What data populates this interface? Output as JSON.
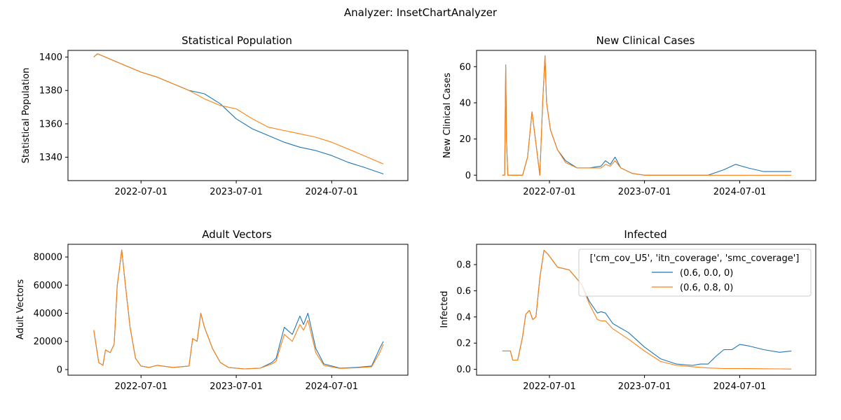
{
  "figure": {
    "suptitle": "Analyzer: InsetChartAnalyzer"
  },
  "series_colors": [
    "#1f77b4",
    "#ff7f0e"
  ],
  "legend": {
    "title": "['cm_cov_U5', 'itn_coverage', 'smc_coverage']",
    "entries": [
      "(0.6, 0.0, 0)",
      "(0.6, 0.8, 0)"
    ],
    "placement": "upper-right of Infected panel"
  },
  "chart_data": [
    {
      "type": "line",
      "title": "Statistical Population",
      "ylabel": "Statistical Population",
      "xlabel": "",
      "x_ticks": [
        "2022-07-01",
        "2023-07-01",
        "2024-07-01"
      ],
      "y_ticks": [
        1340,
        1360,
        1380,
        1400
      ],
      "ylim": [
        1326,
        1404
      ],
      "xlim": [
        "2021-09-24",
        "2025-04-19"
      ],
      "series": [
        {
          "x": [
            "2022-01-01",
            "2022-01-15",
            "2022-03-01",
            "2022-05-01",
            "2022-07-01",
            "2022-09-01",
            "2022-11-01",
            "2023-01-01",
            "2023-03-01",
            "2023-05-01",
            "2023-07-01",
            "2023-09-01",
            "2023-11-01",
            "2024-01-01",
            "2024-03-01",
            "2024-05-01",
            "2024-07-01",
            "2024-09-01",
            "2024-11-01",
            "2025-01-15"
          ],
          "values": [
            1400,
            1402,
            1399,
            1395,
            1391,
            1388,
            1384,
            1380,
            1378,
            1372,
            1363,
            1357,
            1353,
            1349,
            1346,
            1344,
            1341,
            1337,
            1334,
            1330
          ]
        },
        {
          "x": [
            "2022-01-01",
            "2022-01-15",
            "2022-03-01",
            "2022-05-01",
            "2022-07-01",
            "2022-09-01",
            "2022-11-01",
            "2023-01-01",
            "2023-03-01",
            "2023-05-01",
            "2023-07-01",
            "2023-09-01",
            "2023-11-01",
            "2024-01-01",
            "2024-03-01",
            "2024-05-01",
            "2024-07-01",
            "2024-09-01",
            "2024-11-01",
            "2025-01-15"
          ],
          "values": [
            1400,
            1402,
            1399,
            1395,
            1391,
            1388,
            1384,
            1380,
            1375,
            1371,
            1369,
            1363,
            1358,
            1356,
            1354,
            1352,
            1349,
            1345,
            1341,
            1336
          ]
        }
      ]
    },
    {
      "type": "line",
      "title": "New Clinical Cases",
      "ylabel": "New Clinical Cases",
      "xlabel": "",
      "x_ticks": [
        "2022-07-01",
        "2023-07-01",
        "2024-07-01"
      ],
      "y_ticks": [
        0,
        20,
        40,
        60
      ],
      "ylim": [
        -3,
        69
      ],
      "xlim": [
        "2021-09-24",
        "2025-04-19"
      ],
      "series": [
        {
          "x": [
            "2022-01-01",
            "2022-01-10",
            "2022-01-14",
            "2022-01-17",
            "2022-01-22",
            "2022-03-20",
            "2022-04-08",
            "2022-04-25",
            "2022-05-15",
            "2022-05-25",
            "2022-06-05",
            "2022-06-14",
            "2022-06-20",
            "2022-07-05",
            "2022-08-01",
            "2022-09-01",
            "2022-10-15",
            "2022-12-01",
            "2023-01-15",
            "2023-02-01",
            "2023-02-20",
            "2023-03-10",
            "2023-04-01",
            "2023-05-15",
            "2023-07-01",
            "2023-09-01",
            "2023-12-01",
            "2024-03-01",
            "2024-05-01",
            "2024-06-15",
            "2024-08-01",
            "2024-10-01",
            "2025-01-15"
          ],
          "values": [
            0,
            0,
            61,
            20,
            0,
            0,
            10,
            35,
            12,
            0,
            40,
            66,
            40,
            25,
            14,
            8,
            4,
            4,
            5,
            8,
            6,
            10,
            4,
            1,
            0,
            0,
            0,
            0,
            3,
            6,
            4,
            2,
            2
          ]
        },
        {
          "x": [
            "2022-01-01",
            "2022-01-10",
            "2022-01-14",
            "2022-01-17",
            "2022-01-22",
            "2022-03-20",
            "2022-04-08",
            "2022-04-25",
            "2022-05-15",
            "2022-05-25",
            "2022-06-05",
            "2022-06-14",
            "2022-06-20",
            "2022-07-05",
            "2022-08-01",
            "2022-09-01",
            "2022-10-15",
            "2022-12-01",
            "2023-01-15",
            "2023-02-01",
            "2023-02-20",
            "2023-03-10",
            "2023-04-01",
            "2023-05-15",
            "2023-07-01",
            "2023-09-01",
            "2023-12-01",
            "2024-03-01",
            "2024-05-01",
            "2024-06-15",
            "2024-08-01",
            "2024-10-01",
            "2025-01-15"
          ],
          "values": [
            0,
            0,
            61,
            20,
            0,
            0,
            10,
            35,
            12,
            0,
            40,
            66,
            40,
            25,
            14,
            7,
            4,
            4,
            4,
            6,
            5,
            8,
            4,
            1,
            0,
            0,
            0,
            0,
            0,
            0,
            0,
            0,
            0
          ]
        }
      ]
    },
    {
      "type": "line",
      "title": "Adult Vectors",
      "ylabel": "Adult Vectors",
      "xlabel": "",
      "x_ticks": [
        "2022-07-01",
        "2023-07-01",
        "2024-07-01"
      ],
      "y_ticks": [
        0,
        20000,
        40000,
        60000,
        80000
      ],
      "ylim": [
        -4000,
        89000
      ],
      "xlim": [
        "2021-09-24",
        "2025-04-19"
      ],
      "series": [
        {
          "x": [
            "2022-01-01",
            "2022-01-20",
            "2022-02-05",
            "2022-02-15",
            "2022-03-05",
            "2022-03-20",
            "2022-04-01",
            "2022-04-08",
            "2022-04-18",
            "2022-05-01",
            "2022-05-20",
            "2022-06-10",
            "2022-07-01",
            "2022-08-01",
            "2022-09-01",
            "2022-11-01",
            "2023-01-01",
            "2023-01-15",
            "2023-02-01",
            "2023-02-15",
            "2023-03-01",
            "2023-04-01",
            "2023-05-01",
            "2023-06-01",
            "2023-08-01",
            "2023-10-01",
            "2023-11-15",
            "2023-12-01",
            "2024-01-01",
            "2024-02-01",
            "2024-03-01",
            "2024-03-15",
            "2024-04-01",
            "2024-05-01",
            "2024-06-01",
            "2024-08-01",
            "2024-10-01",
            "2024-12-01",
            "2025-01-01",
            "2025-01-15"
          ],
          "values": [
            28000,
            5000,
            3000,
            14000,
            12000,
            18000,
            60000,
            70000,
            85000,
            62000,
            30000,
            8000,
            2500,
            1500,
            3000,
            1500,
            2500,
            22000,
            20000,
            40000,
            30000,
            15000,
            5000,
            1500,
            500,
            1000,
            5000,
            8000,
            30000,
            25000,
            38000,
            32000,
            40000,
            15000,
            4000,
            1000,
            1500,
            2500,
            15000,
            20000
          ]
        },
        {
          "x": [
            "2022-01-01",
            "2022-01-20",
            "2022-02-05",
            "2022-02-15",
            "2022-03-05",
            "2022-03-20",
            "2022-04-01",
            "2022-04-08",
            "2022-04-18",
            "2022-05-01",
            "2022-05-20",
            "2022-06-10",
            "2022-07-01",
            "2022-08-01",
            "2022-09-01",
            "2022-11-01",
            "2023-01-01",
            "2023-01-15",
            "2023-02-01",
            "2023-02-15",
            "2023-03-01",
            "2023-04-01",
            "2023-05-01",
            "2023-06-01",
            "2023-08-01",
            "2023-10-01",
            "2023-11-15",
            "2023-12-01",
            "2024-01-01",
            "2024-02-01",
            "2024-03-01",
            "2024-03-15",
            "2024-04-01",
            "2024-05-01",
            "2024-06-01",
            "2024-08-01",
            "2024-10-01",
            "2024-12-01",
            "2025-01-01",
            "2025-01-15"
          ],
          "values": [
            28000,
            5000,
            3000,
            14000,
            12000,
            18000,
            60000,
            70000,
            85000,
            62000,
            30000,
            8000,
            2500,
            1500,
            3000,
            1500,
            2500,
            22000,
            20000,
            40000,
            30000,
            15000,
            5000,
            1500,
            500,
            1000,
            4000,
            6000,
            25000,
            20000,
            32000,
            28000,
            35000,
            12000,
            3000,
            800,
            1200,
            2000,
            12000,
            18000
          ]
        }
      ]
    },
    {
      "type": "line",
      "title": "Infected",
      "ylabel": "Infected",
      "xlabel": "",
      "x_ticks": [
        "2022-07-01",
        "2023-07-01",
        "2024-07-01"
      ],
      "y_ticks": [
        0.0,
        0.2,
        0.4,
        0.6,
        0.8
      ],
      "ylim": [
        -0.045,
        0.955
      ],
      "xlim": [
        "2021-09-24",
        "2025-04-19"
      ],
      "series": [
        {
          "x": [
            "2022-01-01",
            "2022-02-01",
            "2022-02-10",
            "2022-03-01",
            "2022-03-20",
            "2022-04-01",
            "2022-04-15",
            "2022-04-28",
            "2022-05-10",
            "2022-05-25",
            "2022-06-10",
            "2022-06-25",
            "2022-08-01",
            "2022-09-15",
            "2022-11-01",
            "2022-12-01",
            "2023-01-01",
            "2023-01-15",
            "2023-02-01",
            "2023-03-01",
            "2023-05-01",
            "2023-07-01",
            "2023-09-01",
            "2023-11-01",
            "2024-01-01",
            "2024-02-01",
            "2024-03-01",
            "2024-04-01",
            "2024-05-01",
            "2024-06-01",
            "2024-07-01",
            "2024-08-01",
            "2024-10-01",
            "2024-12-01",
            "2025-01-15"
          ],
          "values": [
            0.14,
            0.14,
            0.07,
            0.07,
            0.25,
            0.42,
            0.45,
            0.38,
            0.4,
            0.7,
            0.91,
            0.88,
            0.78,
            0.76,
            0.65,
            0.52,
            0.43,
            0.44,
            0.43,
            0.35,
            0.28,
            0.17,
            0.08,
            0.04,
            0.03,
            0.04,
            0.04,
            0.1,
            0.15,
            0.15,
            0.19,
            0.18,
            0.15,
            0.13,
            0.14
          ]
        },
        {
          "x": [
            "2022-01-01",
            "2022-02-01",
            "2022-02-10",
            "2022-03-01",
            "2022-03-20",
            "2022-04-01",
            "2022-04-15",
            "2022-04-28",
            "2022-05-10",
            "2022-05-25",
            "2022-06-10",
            "2022-06-25",
            "2022-08-01",
            "2022-09-15",
            "2022-11-01",
            "2022-12-01",
            "2023-01-01",
            "2023-01-15",
            "2023-02-01",
            "2023-03-01",
            "2023-05-01",
            "2023-07-01",
            "2023-09-01",
            "2023-11-01",
            "2024-01-01",
            "2024-02-01",
            "2024-03-01",
            "2024-04-01",
            "2024-05-01",
            "2024-06-01",
            "2024-07-01",
            "2024-08-01",
            "2024-10-01",
            "2024-12-01",
            "2025-01-15"
          ],
          "values": [
            0.14,
            0.14,
            0.07,
            0.07,
            0.25,
            0.42,
            0.45,
            0.38,
            0.4,
            0.7,
            0.91,
            0.88,
            0.78,
            0.76,
            0.65,
            0.5,
            0.38,
            0.37,
            0.37,
            0.31,
            0.23,
            0.14,
            0.06,
            0.03,
            0.02,
            0.015,
            0.01,
            0.008,
            0.006,
            0.006,
            0.006,
            0.005,
            0.004,
            0.003,
            0.002
          ]
        }
      ]
    }
  ]
}
